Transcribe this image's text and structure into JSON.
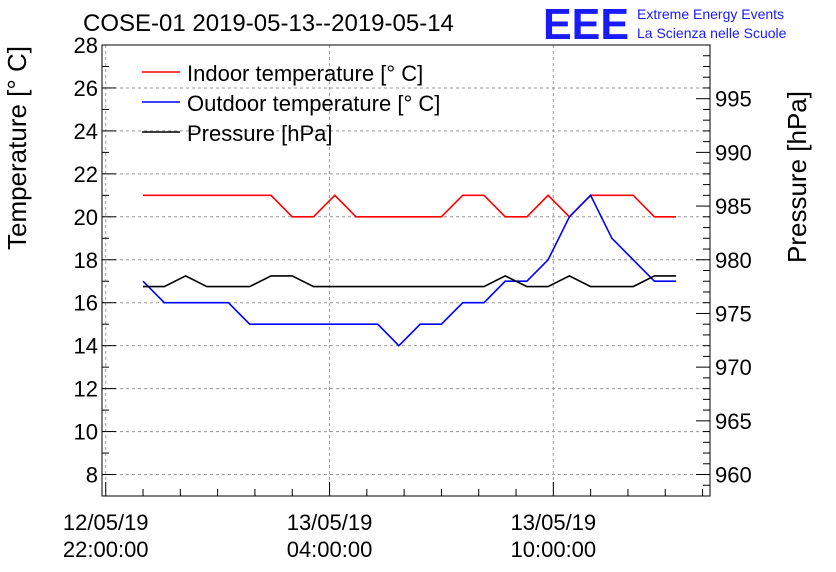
{
  "chart_data": {
    "type": "line",
    "title": "COSE-01 2019-05-13--2019-05-14",
    "ylabel": "Temperature [° C]",
    "y2label": "Pressure [hPa]",
    "ylim": [
      7,
      28
    ],
    "y2lim": [
      958,
      1000
    ],
    "xrange_hours": [
      -0.1,
      16.2
    ],
    "x_tick_labels": [
      {
        "date": "12/05/19",
        "time": "22:00:00",
        "hour": 0
      },
      {
        "date": "13/05/19",
        "time": "04:00:00",
        "hour": 6
      },
      {
        "date": "13/05/19",
        "time": "10:00:00",
        "hour": 12
      }
    ],
    "y_ticks": [
      8,
      10,
      12,
      14,
      16,
      18,
      20,
      22,
      24,
      26,
      28
    ],
    "y2_ticks": [
      960,
      965,
      970,
      975,
      980,
      985,
      990,
      995
    ],
    "grid": true,
    "legend_position": "top-left",
    "x_hours": [
      1,
      1.57,
      2.14,
      2.71,
      3.29,
      3.86,
      4.43,
      5,
      5.57,
      6.14,
      6.71,
      7.29,
      7.86,
      8.43,
      9,
      9.57,
      10.14,
      10.71,
      11.29,
      11.86,
      12.43,
      13,
      13.57,
      14.14,
      14.71,
      15.29
    ],
    "series": [
      {
        "name": "Indoor temperature [° C]",
        "axis": "left",
        "color": "#ff0000",
        "values": [
          21,
          21,
          21,
          21,
          21,
          21,
          21,
          20,
          20,
          21,
          20,
          20,
          20,
          20,
          20,
          21,
          21,
          20,
          20,
          21,
          20,
          21,
          21,
          21,
          20,
          20
        ]
      },
      {
        "name": "Outdoor temperature [° C]",
        "axis": "left",
        "color": "#0000ff",
        "values": [
          17,
          16,
          16,
          16,
          16,
          15,
          15,
          15,
          15,
          15,
          15,
          15,
          14,
          15,
          15,
          16,
          16,
          17,
          17,
          18,
          20,
          21,
          19,
          18,
          17,
          17
        ]
      },
      {
        "name": "Pressure [hPa]",
        "axis": "right",
        "color": "#000000",
        "values": [
          977.5,
          977.5,
          978.5,
          977.5,
          977.5,
          977.5,
          978.5,
          978.5,
          977.5,
          977.5,
          977.5,
          977.5,
          977.5,
          977.5,
          977.5,
          977.5,
          977.5,
          978.5,
          977.5,
          977.5,
          978.5,
          977.5,
          977.5,
          977.5,
          978.5,
          978.5
        ]
      }
    ]
  },
  "logo": {
    "mark": "EEE",
    "line1": "Extreme Energy Events",
    "line2": "La Scienza nelle Scuole",
    "color": "#1a1aff"
  }
}
